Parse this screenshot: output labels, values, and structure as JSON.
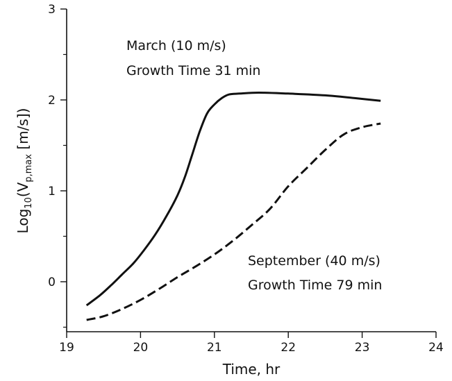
{
  "chart_data": {
    "type": "line",
    "xlabel": "Time, hr",
    "ylabel": {
      "prefix": "Log",
      "prefix_sub": "10",
      "open": "(V",
      "var_sub": "p,max",
      "close": " [m/s])"
    },
    "xlim": [
      19,
      24
    ],
    "ylim": [
      -0.55,
      3
    ],
    "x_ticks": [
      19,
      20,
      21,
      22,
      23,
      24
    ],
    "x_tick_labels": [
      "19",
      "20",
      "21",
      "22",
      "23",
      "24"
    ],
    "y_ticks": [
      0,
      1,
      2,
      3
    ],
    "y_tick_labels": [
      "0",
      "1",
      "2",
      "3"
    ],
    "y_minor_ticks": [
      -0.5,
      0.5,
      1.5,
      2.5
    ],
    "grid": false,
    "series": [
      {
        "line_style": "solid",
        "color": "#111111",
        "x": [
          19.27,
          19.45,
          19.6,
          19.75,
          19.9,
          20.05,
          20.2,
          20.35,
          20.5,
          20.6,
          20.7,
          20.8,
          20.9,
          21.0,
          21.1,
          21.2,
          21.35,
          21.6,
          22.0,
          22.5,
          22.9,
          23.25
        ],
        "y": [
          -0.26,
          -0.15,
          -0.04,
          0.08,
          0.2,
          0.35,
          0.52,
          0.72,
          0.95,
          1.15,
          1.4,
          1.65,
          1.85,
          1.95,
          2.02,
          2.06,
          2.07,
          2.08,
          2.07,
          2.05,
          2.02,
          1.99
        ]
      },
      {
        "line_style": "dashed",
        "color": "#111111",
        "x": [
          19.27,
          19.5,
          19.75,
          20.0,
          20.25,
          20.5,
          20.75,
          21.0,
          21.25,
          21.5,
          21.75,
          22.0,
          22.25,
          22.5,
          22.75,
          23.0,
          23.25
        ],
        "y": [
          -0.42,
          -0.38,
          -0.3,
          -0.2,
          -0.08,
          0.05,
          0.17,
          0.3,
          0.45,
          0.62,
          0.8,
          1.05,
          1.25,
          1.45,
          1.62,
          1.7,
          1.74
        ]
      }
    ],
    "annotations": [
      {
        "lines": [
          "March (10 m/s)",
          "Growth Time 31 min"
        ]
      },
      {
        "lines": [
          "September (40 m/s)",
          "Growth Time 79 min"
        ]
      }
    ]
  }
}
